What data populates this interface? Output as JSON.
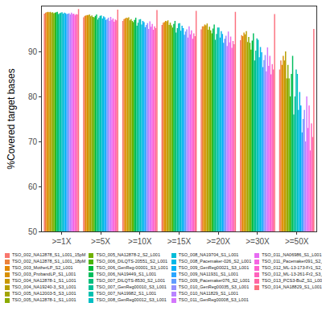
{
  "chart_data": {
    "type": "bar",
    "y_label": "%Covered target bases",
    "categories": [
      ">=1X",
      ">=5X",
      ">=10X",
      ">=15X",
      ">=20X",
      ">=30X",
      ">=50X"
    ],
    "ylim": [
      50,
      100
    ],
    "yticks": [
      50,
      60,
      70,
      80,
      90
    ],
    "grid": false,
    "legend": "bottom",
    "series": [
      {
        "name": "TSO_002_NA12878_S1_L001_15pM",
        "color": "#F8766D",
        "values": [
          98.4,
          97.6,
          96.8,
          95.9,
          94.9,
          92.5,
          86
        ]
      },
      {
        "name": "TSO_002_NA12878_S1_L001_18pM",
        "color": "#EC823C",
        "values": [
          98.6,
          97.9,
          97.2,
          96.4,
          95.6,
          93.6,
          88
        ]
      },
      {
        "name": "TSO_003_MotherLP_S2_L001",
        "color": "#E38900",
        "values": [
          98.7,
          98.0,
          97.3,
          96.5,
          95.6,
          93.4,
          87
        ]
      },
      {
        "name": "TSO_003_ProbandLP_S1_L001",
        "color": "#D89000",
        "values": [
          98.8,
          98.1,
          97.5,
          96.8,
          96.0,
          94.2,
          89
        ]
      },
      {
        "name": "TSO_004_NA12878-1_S1_L001",
        "color": "#C99800",
        "values": [
          98.7,
          98.1,
          97.4,
          96.7,
          95.8,
          93.8,
          88
        ]
      },
      {
        "name": "TSO_004_NA19240-3_S3_L001",
        "color": "#B79F00",
        "values": [
          98.8,
          98.2,
          97.6,
          96.9,
          96.2,
          94.5,
          90
        ]
      },
      {
        "name": "TSO_005_NA12003-5_S3_L001",
        "color": "#A3A500",
        "values": [
          98.6,
          97.8,
          96.9,
          95.9,
          94.8,
          92.1,
          84
        ]
      },
      {
        "name": "TSO_005_NA12878-1_S1_L001",
        "color": "#8CAB00",
        "values": [
          98.7,
          98.0,
          97.2,
          96.4,
          95.5,
          93.2,
          87
        ]
      },
      {
        "name": "TSO_005_NA12878-2_S2_L001",
        "color": "#6FB000",
        "values": [
          98.5,
          97.7,
          96.8,
          95.8,
          94.7,
          91.9,
          84
        ]
      },
      {
        "name": "TSO_006_DILQTS-20551_S2_L001",
        "color": "#4BB400",
        "values": [
          98.6,
          97.6,
          96.5,
          95.3,
          94.0,
          90.4,
          80
        ]
      },
      {
        "name": "TSO_006_GenReg-00001_S3_L001",
        "color": "#00BA38",
        "values": [
          98.7,
          97.9,
          97.0,
          96.1,
          95.1,
          92.4,
          85
        ]
      },
      {
        "name": "TSO_006_NA19449_S1_L001",
        "color": "#00BD5C",
        "values": [
          98.8,
          98.2,
          97.5,
          96.8,
          96.0,
          94.0,
          89
        ]
      },
      {
        "name": "TSO_007_DILQTS-8530_S2_L001",
        "color": "#00BF7D",
        "values": [
          98.3,
          97.1,
          95.7,
          94.2,
          92.6,
          88.0,
          76
        ]
      },
      {
        "name": "TSO_007_GenReg00010_S3_L001",
        "color": "#00C097",
        "values": [
          98.5,
          97.5,
          96.4,
          95.2,
          93.9,
          90.2,
          80
        ]
      },
      {
        "name": "TSO_007_NA19982_S1_L001",
        "color": "#00C0AF",
        "values": [
          98.6,
          97.9,
          97.1,
          96.2,
          95.3,
          92.9,
          86
        ]
      },
      {
        "name": "TSO_008_GenReg00012_S3_L001",
        "color": "#00BFC4",
        "values": [
          98.7,
          98.0,
          97.2,
          96.3,
          95.3,
          92.6,
          85
        ]
      },
      {
        "name": "TSO_008_NA19704_S1_L001",
        "color": "#00BCD8",
        "values": [
          98.4,
          97.3,
          96.0,
          94.6,
          93.1,
          88.7,
          77
        ]
      },
      {
        "name": "TSO_008_Pacemaker-026_S2_L001",
        "color": "#00B8E7",
        "values": [
          98.6,
          97.8,
          96.8,
          95.7,
          94.5,
          91.0,
          81
        ]
      },
      {
        "name": "TSO_009_GenReg00021_S3_L001",
        "color": "#00B0F6",
        "values": [
          98.5,
          97.6,
          96.5,
          95.2,
          93.9,
          89.8,
          78
        ]
      },
      {
        "name": "TSO_009_NA11931_S1_L001",
        "color": "#2AA5FF",
        "values": [
          98.3,
          97.0,
          95.4,
          93.7,
          91.9,
          86.5,
          72
        ]
      },
      {
        "name": "TSO_009_Pacemaker076_S2_L001",
        "color": "#619CFF",
        "values": [
          98.4,
          97.2,
          95.9,
          94.4,
          92.8,
          88.1,
          75
        ]
      },
      {
        "name": "TSO_010_GenReg00035_S3_L001",
        "color": "#9590FF",
        "values": [
          98.5,
          97.5,
          96.3,
          94.9,
          93.5,
          89.2,
          77
        ]
      },
      {
        "name": "TSO_010_NA11829_S1_L001",
        "color": "#B983FF",
        "values": [
          98.2,
          96.8,
          95.0,
          93.1,
          91.2,
          85.6,
          70
        ]
      },
      {
        "name": "TSO_011_GenReg00008_S3_L001",
        "color": "#D376FC",
        "values": [
          98.6,
          97.7,
          96.7,
          95.6,
          94.4,
          90.9,
          80
        ]
      },
      {
        "name": "TSO_011_NA06986_S1_L001",
        "color": "#E76BF3",
        "values": [
          98.3,
          97.0,
          95.5,
          93.8,
          92.0,
          86.8,
          73
        ]
      },
      {
        "name": "TSO_011_Pacemaker091_S2_L001",
        "color": "#F564E3",
        "values": [
          98.4,
          97.3,
          96.1,
          94.7,
          93.3,
          89.0,
          78
        ]
      },
      {
        "name": "TSO_012_ML-13-173-Fr1_S2_L001",
        "color": "#FD61D1",
        "values": [
          98.1,
          96.6,
          94.8,
          92.8,
          90.8,
          84.9,
          68
        ]
      },
      {
        "name": "TSO_012_ML-13-261-Fr2_S3_L001",
        "color": "#FF62BC",
        "values": [
          98.3,
          97.1,
          95.6,
          94.0,
          92.3,
          87.2,
          74
        ]
      },
      {
        "name": "TSO_013_PCS3-BuZ_S1_L001",
        "color": "#FF67A4",
        "values": [
          98.2,
          96.9,
          95.2,
          93.4,
          91.6,
          86.0,
          71
        ]
      },
      {
        "name": "TSO_014_NA18829_S1_L001",
        "color": "#FC717F",
        "values": [
          99.4,
          99.3,
          99.2,
          99.0,
          98.8,
          98.3,
          95
        ]
      }
    ]
  }
}
